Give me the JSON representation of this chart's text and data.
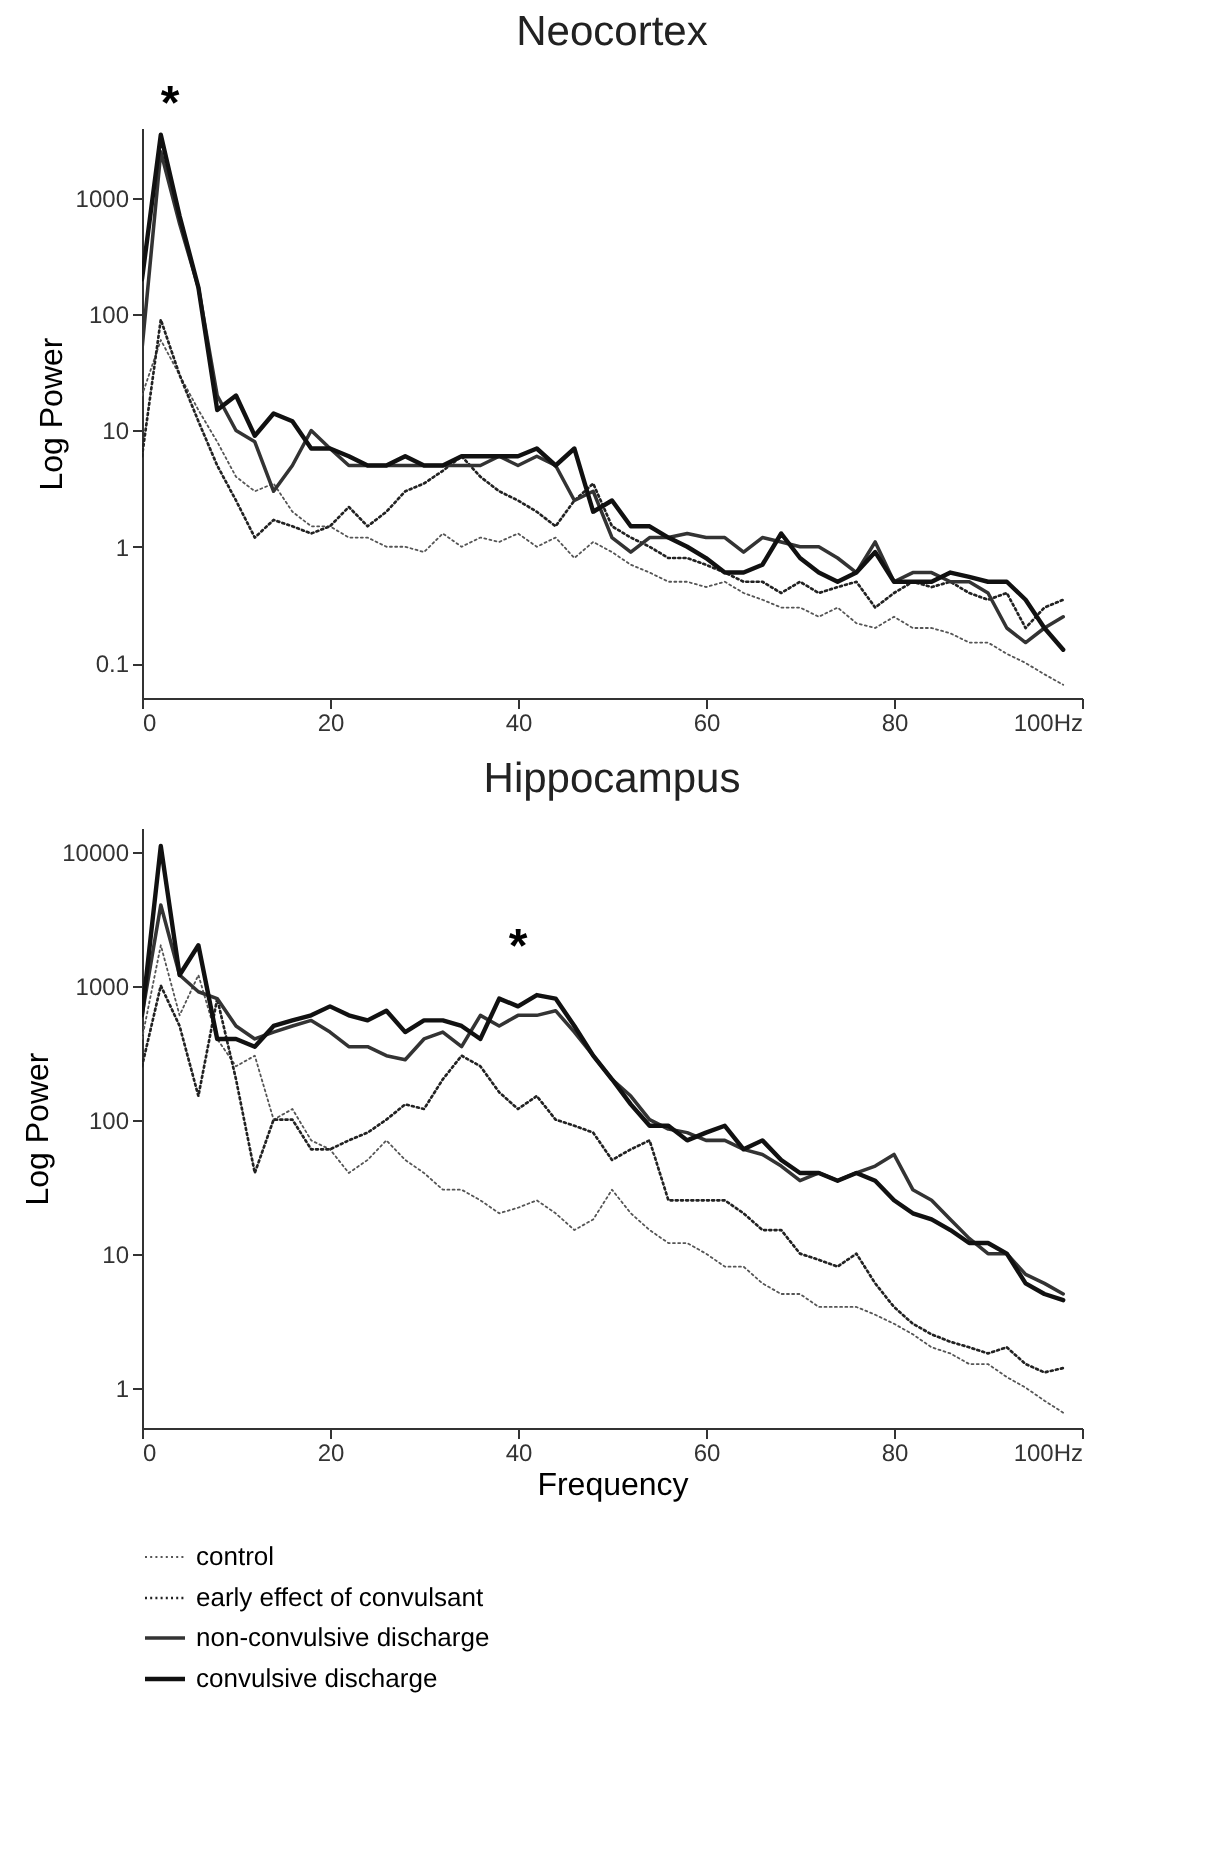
{
  "chart_data": [
    {
      "type": "line",
      "title": "Neocortex",
      "ylabel": "Log Power",
      "log": "y",
      "grid": false,
      "x": [
        0,
        2,
        4,
        6,
        8,
        10,
        12,
        14,
        16,
        18,
        20,
        22,
        24,
        26,
        28,
        30,
        32,
        34,
        36,
        38,
        40,
        42,
        44,
        46,
        48,
        50,
        52,
        54,
        56,
        58,
        60,
        62,
        64,
        66,
        68,
        70,
        72,
        74,
        76,
        78,
        80,
        82,
        84,
        86,
        88,
        90,
        92,
        94,
        96,
        98
      ],
      "xlim": [
        0,
        100
      ],
      "xticks": [
        0,
        20,
        40,
        60,
        80,
        {
          "value": 100,
          "label": "100Hz"
        }
      ],
      "ylim": [
        0.05,
        4000
      ],
      "yticks": [
        0.1,
        1,
        10,
        100,
        1000
      ],
      "annotations": [
        "*"
      ],
      "series": [
        {
          "color": "#555555",
          "line_style": "dotted",
          "values": [
            20,
            60,
            30,
            15,
            8,
            4,
            3,
            3.5,
            2,
            1.5,
            1.5,
            1.2,
            1.2,
            1,
            1,
            0.9,
            1.3,
            1,
            1.2,
            1.1,
            1.3,
            1,
            1.2,
            0.8,
            1.1,
            0.9,
            0.7,
            0.6,
            0.5,
            0.5,
            0.45,
            0.5,
            0.4,
            0.35,
            0.3,
            0.3,
            0.25,
            0.3,
            0.22,
            0.2,
            0.25,
            0.2,
            0.2,
            0.18,
            0.15,
            0.15,
            0.12,
            0.1,
            0.08,
            0.065
          ]
        },
        {
          "color": "#222222",
          "line_style": "dotted",
          "values": [
            6,
            90,
            30,
            12,
            5,
            2.5,
            1.2,
            1.7,
            1.5,
            1.3,
            1.5,
            2.2,
            1.5,
            2,
            3,
            3.5,
            4.5,
            6,
            4,
            3,
            2.5,
            2,
            1.5,
            2.5,
            3.5,
            1.5,
            1.2,
            1,
            0.8,
            0.8,
            0.7,
            0.6,
            0.5,
            0.5,
            0.4,
            0.5,
            0.4,
            0.45,
            0.5,
            0.3,
            0.4,
            0.5,
            0.45,
            0.5,
            0.4,
            0.35,
            0.4,
            0.2,
            0.3,
            0.35
          ]
        },
        {
          "color": "#333333",
          "line_style": "solid",
          "values": [
            50,
            2500,
            600,
            170,
            20,
            10,
            8,
            3,
            5,
            10,
            7,
            5,
            5,
            5,
            5,
            5,
            5,
            5,
            5,
            6,
            5,
            6,
            5,
            2.5,
            3,
            1.2,
            0.9,
            1.2,
            1.2,
            1.3,
            1.2,
            1.2,
            0.9,
            1.2,
            1.1,
            1,
            1,
            0.8,
            0.6,
            1.1,
            0.5,
            0.6,
            0.6,
            0.5,
            0.5,
            0.4,
            0.2,
            0.15,
            0.2,
            0.25
          ]
        },
        {
          "color": "#111111",
          "line_style": "solid",
          "values": [
            200,
            3500,
            700,
            170,
            15,
            20,
            9,
            14,
            12,
            7,
            7,
            6,
            5,
            5,
            6,
            5,
            5,
            6,
            6,
            6,
            6,
            7,
            5,
            7,
            2,
            2.5,
            1.5,
            1.5,
            1.2,
            1,
            0.8,
            0.6,
            0.6,
            0.7,
            1.3,
            0.8,
            0.6,
            0.5,
            0.6,
            0.9,
            0.5,
            0.5,
            0.5,
            0.6,
            0.55,
            0.5,
            0.5,
            0.35,
            0.2,
            0.13
          ]
        }
      ]
    },
    {
      "type": "line",
      "title": "Hippocampus",
      "xlabel": "Frequency",
      "ylabel": "Log Power",
      "log": "y",
      "grid": false,
      "legend": "bottom",
      "x": [
        0,
        2,
        4,
        6,
        8,
        10,
        12,
        14,
        16,
        18,
        20,
        22,
        24,
        26,
        28,
        30,
        32,
        34,
        36,
        38,
        40,
        42,
        44,
        46,
        48,
        50,
        52,
        54,
        56,
        58,
        60,
        62,
        64,
        66,
        68,
        70,
        72,
        74,
        76,
        78,
        80,
        82,
        84,
        86,
        88,
        90,
        92,
        94,
        96,
        98
      ],
      "xlim": [
        0,
        100
      ],
      "xticks": [
        0,
        20,
        40,
        60,
        80,
        {
          "value": 100,
          "label": "100Hz"
        }
      ],
      "ylim": [
        0.5,
        15000
      ],
      "yticks": [
        1,
        10,
        100,
        1000,
        10000
      ],
      "annotations": [
        "*"
      ],
      "series": [
        {
          "name": "control",
          "color": "#555555",
          "line_style": "dotted",
          "values": [
            400,
            2000,
            600,
            1200,
            400,
            250,
            300,
            100,
            120,
            70,
            60,
            40,
            50,
            70,
            50,
            40,
            30,
            30,
            25,
            20,
            22,
            25,
            20,
            15,
            18,
            30,
            20,
            15,
            12,
            12,
            10,
            8,
            8,
            6,
            5,
            5,
            4,
            4,
            4,
            3.5,
            3,
            2.5,
            2,
            1.8,
            1.5,
            1.5,
            1.2,
            1,
            0.8,
            0.65
          ]
        },
        {
          "name": "early effect of convulsant",
          "color": "#222222",
          "line_style": "dotted",
          "values": [
            250,
            1000,
            500,
            150,
            800,
            200,
            40,
            100,
            100,
            60,
            60,
            70,
            80,
            100,
            130,
            120,
            200,
            300,
            250,
            160,
            120,
            150,
            100,
            90,
            80,
            50,
            60,
            70,
            25,
            25,
            25,
            25,
            20,
            15,
            15,
            10,
            9,
            8,
            10,
            6,
            4,
            3,
            2.5,
            2.2,
            2,
            1.8,
            2,
            1.5,
            1.3,
            1.4
          ]
        },
        {
          "name": "non-convulsive discharge",
          "color": "#333333",
          "line_style": "solid",
          "values": [
            600,
            4000,
            1200,
            900,
            800,
            500,
            400,
            450,
            500,
            550,
            450,
            350,
            350,
            300,
            280,
            400,
            450,
            350,
            600,
            500,
            600,
            600,
            650,
            450,
            300,
            200,
            150,
            100,
            85,
            80,
            70,
            70,
            60,
            55,
            45,
            35,
            40,
            35,
            40,
            45,
            55,
            30,
            25,
            18,
            13,
            10,
            10,
            7,
            6,
            5
          ]
        },
        {
          "name": "convulsive discharge",
          "color": "#111111",
          "line_style": "solid",
          "values": [
            600,
            11000,
            1200,
            2000,
            400,
            400,
            350,
            500,
            550,
            600,
            700,
            600,
            550,
            650,
            450,
            550,
            550,
            500,
            400,
            800,
            700,
            850,
            800,
            500,
            300,
            200,
            130,
            90,
            90,
            70,
            80,
            90,
            60,
            70,
            50,
            40,
            40,
            35,
            40,
            35,
            25,
            20,
            18,
            15,
            12,
            12,
            10,
            6,
            5,
            4.5
          ]
        }
      ]
    }
  ]
}
